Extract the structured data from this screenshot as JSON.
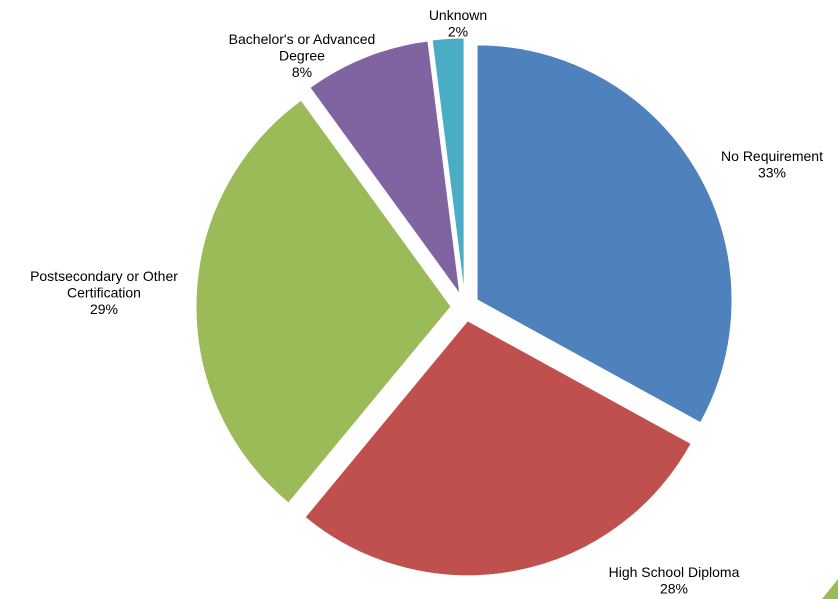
{
  "chart_data": {
    "type": "pie",
    "exploded": true,
    "start": "12 o'clock",
    "direction": "clockwise",
    "slices": [
      {
        "name": "No Requirement",
        "value": 33,
        "display": "33%",
        "color": "#4f81bd",
        "label_lines": [
          "No Requirement"
        ]
      },
      {
        "name": "High School Diploma",
        "value": 28,
        "display": "28%",
        "color": "#c0504d",
        "label_lines": [
          "High School Diploma"
        ]
      },
      {
        "name": "Postsecondary or Other Certification",
        "value": 29,
        "display": "29%",
        "color": "#9bbb59",
        "label_lines": [
          "Postsecondary or Other",
          "Certification"
        ]
      },
      {
        "name": "Bachelor's or Advanced Degree",
        "value": 8,
        "display": "8%",
        "color": "#8064a2",
        "label_lines": [
          "Bachelor's or Advanced",
          "Degree"
        ]
      },
      {
        "name": "Unknown",
        "value": 2,
        "display": "2%",
        "color": "#4bacc6",
        "label_lines": [
          "Unknown"
        ]
      }
    ]
  }
}
